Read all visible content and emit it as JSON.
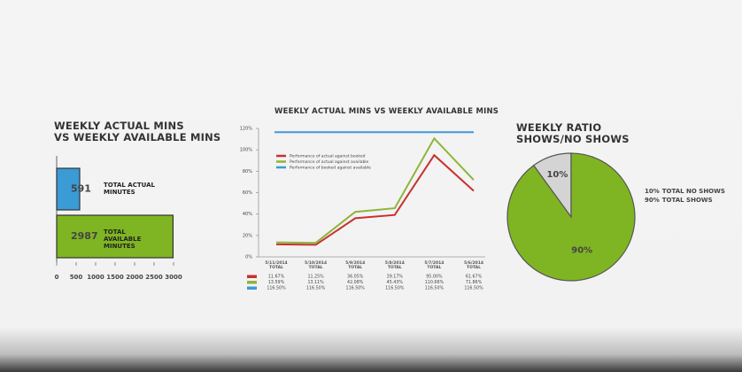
{
  "chart_data": [
    {
      "type": "bar",
      "orientation": "horizontal",
      "title": "WEEKLY ACTUAL MINS\nVS WEEKLY AVAILABLE MINS",
      "categories": [
        "TOTAL ACTUAL MINUTES",
        "TOTAL AVAILABLE MINUTES"
      ],
      "values": [
        591,
        2987
      ],
      "colors": [
        "#3a9bd5",
        "#7fb522"
      ],
      "xlim": [
        0,
        3000
      ],
      "xticks": [
        0,
        500,
        1000,
        1500,
        2000,
        2500,
        3000
      ]
    },
    {
      "type": "line",
      "title": "WEEKLY ACTUAL MINS VS WEEKLY AVAILABLE MINS",
      "categories": [
        "5/11/2014\nTOTAL",
        "5/10/2014\nTOTAL",
        "5/9/2014\nTOTAL",
        "5/8/2014\nTOTAL",
        "5/7/2014\nTOTAL",
        "5/6/2014\nTOTAL"
      ],
      "series": [
        {
          "name": "Performance of actual against booked",
          "color": "#c8312f",
          "values": [
            11.67,
            11.25,
            36.05,
            39.17,
            95.0,
            61.67
          ],
          "value_labels": [
            "11.67%",
            "11.25%",
            "36.05%",
            "39.17%",
            "95.00%",
            "61.67%"
          ]
        },
        {
          "name": "Performance of actual against available",
          "color": "#8fb43a",
          "values": [
            13.59,
            13.11,
            42.08,
            45.43,
            110.66,
            71.86
          ],
          "value_labels": [
            "13.59%",
            "13.11%",
            "42.08%",
            "45.43%",
            "110.66%",
            "71.86%"
          ]
        },
        {
          "name": "Performance of booked against available",
          "color": "#3d9ad6",
          "values": [
            116.5,
            116.5,
            116.5,
            116.5,
            116.5,
            116.5
          ],
          "value_labels": [
            "116.50%",
            "116.50%",
            "116.50%",
            "116.50%",
            "116.50%",
            "116.50%"
          ]
        }
      ],
      "ylim": [
        0,
        120
      ],
      "yticks": [
        {
          "value": 0,
          "label": "0%"
        },
        {
          "value": 20,
          "label": "20%"
        },
        {
          "value": 40,
          "label": "40%"
        },
        {
          "value": 60,
          "label": "60%"
        },
        {
          "value": 80,
          "label": "80%"
        },
        {
          "value": 100,
          "label": "100%"
        },
        {
          "value": 120,
          "label": "120%"
        }
      ]
    },
    {
      "type": "pie",
      "title": "WEEKLY RATIO\nSHOWS/NO SHOWS",
      "categories": [
        "TOTAL NO SHOWS",
        "TOTAL SHOWS"
      ],
      "values": [
        10,
        90
      ],
      "value_labels": [
        "10%",
        "90%"
      ],
      "colors": [
        "#d4d4d4",
        "#7fb522"
      ]
    }
  ]
}
